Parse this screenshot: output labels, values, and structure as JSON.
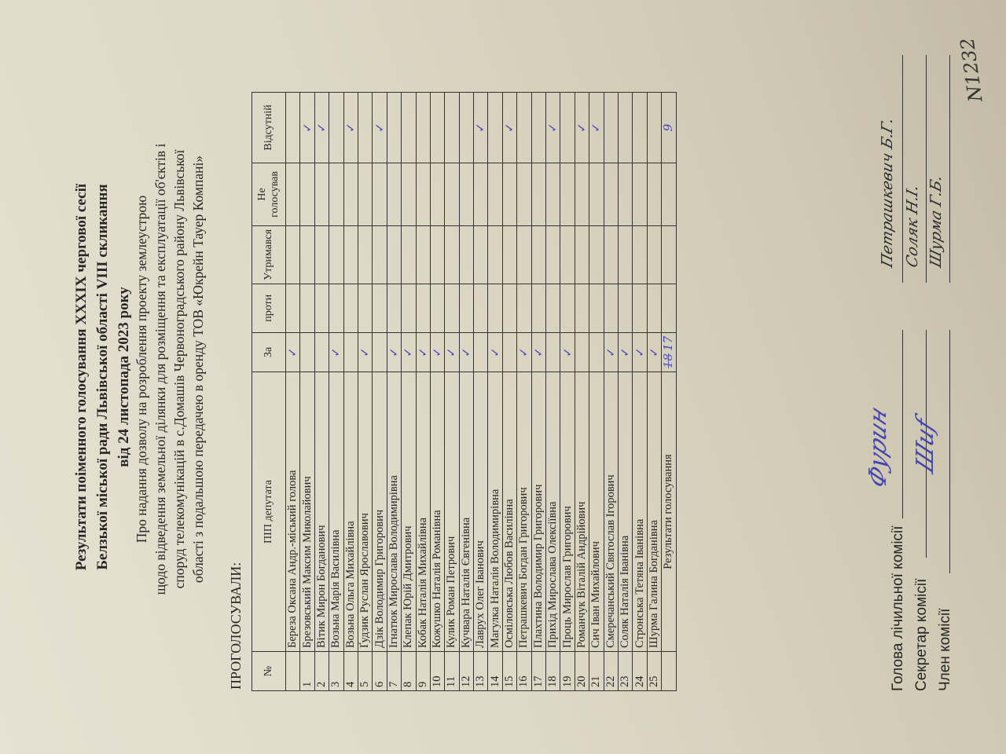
{
  "document_number": "N1232",
  "title": {
    "line1": "Результати поіменного голосування XXXIX чергової сесії",
    "line2": "Белзької міської ради Львівської області VIII скликання",
    "line3": "від 24 листопада 2023 року"
  },
  "subject": {
    "line1": "Про надання дозволу на розроблення проекту землеустрою",
    "line2": "щодо відведення земельної ділянки для розміщення та експлуатації об'єктів і",
    "line3": "споруд телекомунікацій в с.Домашів Червоноградського району Львівської",
    "line4": "області  з подальшою передачею в оренду ТОВ «Юкрейн Тауер Компані»"
  },
  "heading": "ПРОГОЛОСУВАЛИ:",
  "table": {
    "headers": [
      "№",
      "ПІП депутата",
      "За",
      "проти",
      "Утримався",
      "Не голосував",
      "Відсутній"
    ],
    "check_mark": "✓",
    "rows": [
      {
        "num": "",
        "name": "Береза Оксана Андр.-міський голова",
        "vote": "za"
      },
      {
        "num": "1",
        "name": "Брезовський Максим Миколайович",
        "vote": "absent"
      },
      {
        "num": "2",
        "name": "Вітик Мирон Богданович",
        "vote": "absent"
      },
      {
        "num": "3",
        "name": "Возьна Марія Василівна",
        "vote": "za"
      },
      {
        "num": "4",
        "name": "Возьна Ольга Михайлівна",
        "vote": "absent"
      },
      {
        "num": "5",
        "name": "Ґудзик Руслан Ярославович",
        "vote": "za"
      },
      {
        "num": "6",
        "name": "Дзік Володимир Григорович",
        "vote": "absent"
      },
      {
        "num": "7",
        "name": "Ігнатюк Мирослава Володимирівна",
        "vote": "za"
      },
      {
        "num": "8",
        "name": "Клепак Юрій Дмитрович",
        "vote": "za"
      },
      {
        "num": "9",
        "name": "Кобак Наталія Михайлівна",
        "vote": "za"
      },
      {
        "num": "10",
        "name": "Кожушко Наталія Романівна",
        "vote": "za"
      },
      {
        "num": "11",
        "name": "Кулик Роман Петрович",
        "vote": "za"
      },
      {
        "num": "12",
        "name": "Кучвара Наталія Євгенівна",
        "vote": "za"
      },
      {
        "num": "13",
        "name": "Лаврух Олег Іванович",
        "vote": "absent"
      },
      {
        "num": "14",
        "name": "Магулка Наталія Володимирівна",
        "vote": "za"
      },
      {
        "num": "15",
        "name": "Осміловська Любов Василівна",
        "vote": "absent"
      },
      {
        "num": "16",
        "name": "Петрашкевич Богдан Григорович",
        "vote": "za"
      },
      {
        "num": "17",
        "name": "Плахтина Володимир Григорович",
        "vote": "za"
      },
      {
        "num": "18",
        "name": "Прихід Мирослава Олексіївна",
        "vote": "absent"
      },
      {
        "num": "19",
        "name": "Проць Мирослав Григорович",
        "vote": "za"
      },
      {
        "num": "20",
        "name": "Романчук Віталій Андрійович",
        "vote": "absent"
      },
      {
        "num": "21",
        "name": "Сич Іван Михайлович",
        "vote": "absent"
      },
      {
        "num": "22",
        "name": "Смеречанський Святослав Ігорович",
        "vote": "za"
      },
      {
        "num": "23",
        "name": "Соляк Наталія Іванівна",
        "vote": "za"
      },
      {
        "num": "24",
        "name": "Стронська Тетяна Іванівна",
        "vote": "za"
      },
      {
        "num": "25",
        "name": "Шурма Галина Богданівна",
        "vote": "za"
      }
    ],
    "results": {
      "label": "Результати голосування",
      "za_crossed": "18",
      "za": "17",
      "absent": "9"
    }
  },
  "signatures": {
    "chair_label": "Голова лічильної комісії",
    "secretary_label": "Секретар комісії",
    "member_label": "Член комісії",
    "chair_name": "Петрашкевич Б.Г.",
    "secretary_name": "Соляк Н.І.",
    "member_name": "Шурма Г.Б."
  },
  "colors": {
    "ink_blue": "#4646b8",
    "paper": "#ddd7c5"
  }
}
